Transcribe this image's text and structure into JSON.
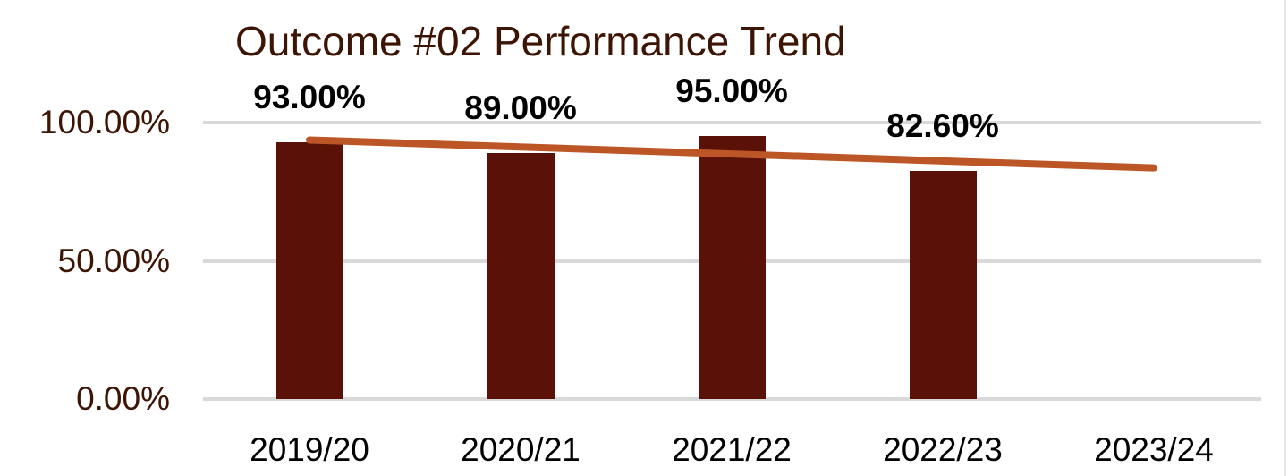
{
  "chart_data": {
    "type": "bar",
    "title": "Outcome #02 Performance Trend",
    "categories": [
      "2019/20",
      "2020/21",
      "2021/22",
      "2022/23",
      "2023/24"
    ],
    "series": [
      {
        "name": "Outcome #02",
        "values": [
          93,
          89,
          95,
          82.6,
          null
        ],
        "data_labels": [
          "93.00%",
          "89.00%",
          "95.00%",
          "82.60%",
          ""
        ]
      }
    ],
    "trendline": {
      "type": "linear",
      "start_value": 93.7,
      "end_value": 83.6,
      "color": "#BD5627"
    },
    "xlabel": "",
    "ylabel": "",
    "ylim": [
      0,
      100
    ],
    "y_ticks": [
      {
        "label": "0.00%",
        "value": 0
      },
      {
        "label": "50.00%",
        "value": 50
      },
      {
        "label": "100.00%",
        "value": 100
      }
    ],
    "grid": true,
    "legend": "none",
    "colors": {
      "bar": "#591108",
      "title_text": "#3D1505",
      "y_tick_text": "#3D1505",
      "x_tick_text": "#000000",
      "data_label_text": "#000000",
      "gridline": "#D9D9D9",
      "right_edge": "#E7E7E7"
    }
  }
}
